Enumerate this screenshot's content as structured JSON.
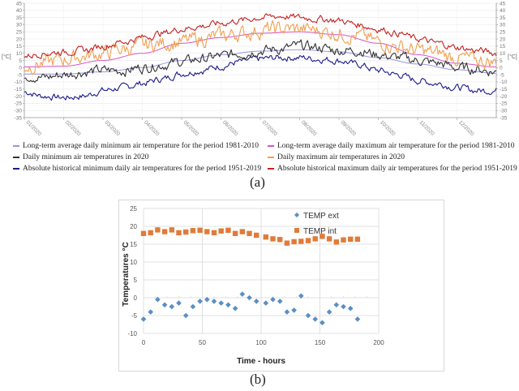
{
  "chart_data": [
    {
      "id": "a",
      "type": "line",
      "caption": "(a)",
      "ylabel_left": "[°C]",
      "ylabel_right": "[°C]",
      "ylim": [
        -35,
        45
      ],
      "yticks": [
        45,
        40,
        35,
        30,
        25,
        20,
        15,
        10,
        5,
        0,
        -5,
        -10,
        -15,
        -20,
        -25,
        -30,
        -35
      ],
      "xtick_labels": [
        "01/2020",
        "02/2020",
        "03/2020",
        "04/2020",
        "05/2020",
        "06/2020",
        "07/2020",
        "08/2020",
        "09/2020",
        "10/2020",
        "11/2020",
        "12/2020"
      ],
      "x_unit": "month index (0 = start of Jan 2020, 12 = end of Dec 2020)",
      "grid": true,
      "legend_position": "bottom",
      "series": [
        {
          "name": "Long-term average daily minimum air temperature for the period 1981-2010",
          "color": "#9a94e0",
          "kind": "smooth",
          "x": [
            0,
            1,
            2,
            3,
            4,
            5,
            6,
            7,
            8,
            9,
            10,
            11,
            12
          ],
          "values": [
            -4.5,
            -4.5,
            -3,
            0,
            5,
            9,
            11.5,
            12.5,
            11,
            7,
            2.5,
            -1.5,
            -4
          ]
        },
        {
          "name": "Long-term average daily maximum air temperature for the period 1981-2010",
          "color": "#d455c8",
          "kind": "smooth",
          "x": [
            0,
            1,
            2,
            3,
            4,
            5,
            6,
            7,
            8,
            9,
            10,
            11,
            12
          ],
          "values": [
            0.5,
            1,
            5,
            10,
            17,
            21,
            24,
            25,
            23,
            17,
            9,
            3,
            0.5
          ]
        },
        {
          "name": "Daily minimum air temperatures in 2020",
          "color": "#333333",
          "kind": "noisy",
          "x": [
            0,
            0.5,
            1,
            1.5,
            2,
            2.5,
            3,
            3.5,
            4,
            4.5,
            5,
            5.5,
            6,
            6.5,
            7,
            7.5,
            8,
            8.5,
            9,
            9.5,
            10,
            10.5,
            11,
            11.5,
            12
          ],
          "values": [
            -5,
            -7,
            -5,
            -3,
            -2,
            -2,
            0,
            2,
            4,
            6,
            8,
            10,
            12,
            13,
            15,
            14,
            12,
            12,
            9,
            7,
            5,
            3,
            0,
            -1,
            -3
          ]
        },
        {
          "name": "Daily maximum air temperatures in 2020",
          "color": "#f0a050",
          "kind": "noisy",
          "x": [
            0,
            0.5,
            1,
            1.5,
            2,
            2.5,
            3,
            3.5,
            4,
            4.5,
            5,
            5.5,
            6,
            6.5,
            7,
            7.5,
            8,
            8.5,
            9,
            9.5,
            10,
            10.5,
            11,
            11.5,
            12
          ],
          "values": [
            1,
            3,
            6,
            8,
            10,
            13,
            15,
            17,
            18,
            20,
            22,
            24,
            26,
            27,
            27,
            26,
            24,
            22,
            18,
            15,
            12,
            10,
            7,
            5,
            4
          ]
        },
        {
          "name": "Absolute historical minimum daily air temperatures for the period 1951-2019",
          "color": "#1a1a8c",
          "kind": "noisy",
          "x": [
            0,
            0.5,
            1,
            1.5,
            2,
            2.5,
            3,
            3.5,
            4,
            4.5,
            5,
            5.5,
            6,
            6.5,
            7,
            7.5,
            8,
            8.5,
            9,
            9.5,
            10,
            10.5,
            11,
            11.5,
            12
          ],
          "values": [
            -17,
            -20,
            -21,
            -20,
            -16,
            -14,
            -11,
            -8,
            -4,
            -2,
            1,
            4,
            6,
            7,
            7,
            6,
            5,
            2,
            -2,
            -5,
            -9,
            -11,
            -14,
            -16,
            -16
          ]
        },
        {
          "name": "Absolute historical maximum daily air temperatures for the period 1951-2019",
          "color": "#c42020",
          "kind": "noisy",
          "x": [
            0,
            0.5,
            1,
            1.5,
            2,
            2.5,
            3,
            3.5,
            4,
            4.5,
            5,
            5.5,
            6,
            6.5,
            7,
            7.5,
            8,
            8.5,
            9,
            9.5,
            10,
            10.5,
            11,
            11.5,
            12
          ],
          "values": [
            8,
            10,
            11,
            12,
            15,
            18,
            21,
            24,
            27,
            29,
            31,
            33,
            35,
            36,
            35,
            34,
            33,
            30,
            27,
            24,
            20,
            17,
            14,
            12,
            10
          ]
        }
      ]
    },
    {
      "id": "b",
      "type": "scatter",
      "caption": "(b)",
      "xlabel": "Time - hours",
      "ylabel": "Temperatures °C",
      "xlim": [
        0,
        200
      ],
      "ylim": [
        -10,
        25
      ],
      "xticks": [
        0,
        50,
        100,
        150,
        200
      ],
      "yticks": [
        25,
        20,
        15,
        10,
        5,
        0,
        -5,
        -10
      ],
      "grid": true,
      "legend_position": "top-right",
      "series": [
        {
          "name": "TEMP ext",
          "color": "#5b8ec4",
          "marker": "diamond",
          "x": [
            0,
            6,
            12,
            18,
            24,
            30,
            36,
            42,
            48,
            54,
            60,
            66,
            72,
            78,
            84,
            90,
            96,
            104,
            110,
            116,
            122,
            128,
            134,
            140,
            146,
            152,
            158,
            164,
            170,
            176,
            182
          ],
          "values": [
            -6,
            -4,
            -0.5,
            -2,
            -2.5,
            -1.5,
            -5,
            -2.5,
            -1,
            -0.5,
            -1,
            -1.5,
            -2,
            -3,
            1,
            0,
            -1,
            -1.5,
            -0.5,
            -1,
            -4,
            -3.5,
            0.5,
            -5,
            -6,
            -7,
            -4,
            -2,
            -2.5,
            -3,
            -6
          ]
        },
        {
          "name": "TEMP int",
          "color": "#e07b39",
          "marker": "square",
          "x": [
            0,
            6,
            12,
            18,
            24,
            30,
            36,
            42,
            48,
            54,
            60,
            66,
            72,
            78,
            84,
            90,
            96,
            104,
            110,
            116,
            122,
            128,
            134,
            140,
            146,
            152,
            158,
            164,
            170,
            176,
            182
          ],
          "values": [
            18,
            18.2,
            19,
            18.5,
            19,
            18.2,
            18.4,
            18.8,
            18.9,
            18.5,
            18.2,
            18.7,
            18.9,
            18,
            18.5,
            18,
            17.5,
            17,
            16.5,
            16.3,
            15.3,
            15.7,
            15.8,
            16,
            16.5,
            17.2,
            16.5,
            15.6,
            16.2,
            16.4,
            16.4
          ]
        }
      ]
    }
  ]
}
